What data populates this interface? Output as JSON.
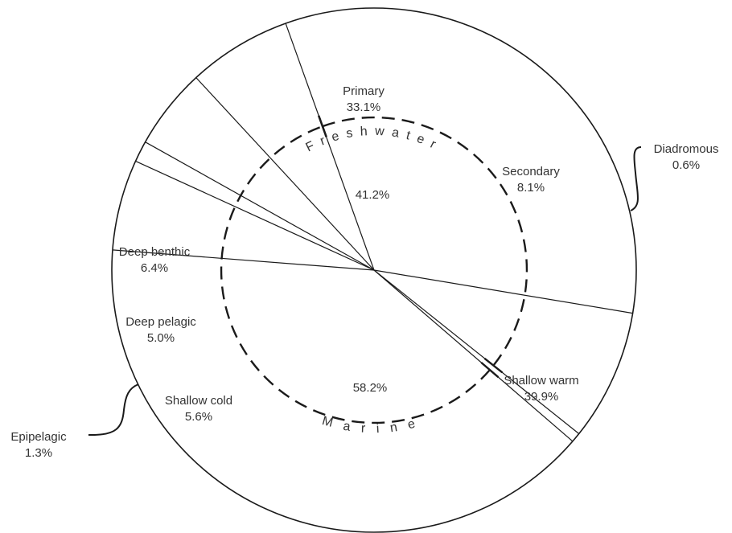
{
  "chart_data": {
    "type": "pie",
    "slices": [
      {
        "name": "Primary",
        "percent_label": "33.1%",
        "value": 33.1,
        "group": "freshwater"
      },
      {
        "name": "Secondary",
        "percent_label": "8.1%",
        "value": 8.1,
        "group": "freshwater"
      },
      {
        "name": "Diadromous",
        "percent_label": "0.6%",
        "value": 0.6,
        "group": "none"
      },
      {
        "name": "Shallow warm",
        "percent_label": "39.9%",
        "value": 39.9,
        "group": "marine"
      },
      {
        "name": "Shallow cold",
        "percent_label": "5.6%",
        "value": 5.6,
        "group": "marine"
      },
      {
        "name": "Epipelagic",
        "percent_label": "1.3%",
        "value": 1.3,
        "group": "marine"
      },
      {
        "name": "Deep pelagic",
        "percent_label": "5.0%",
        "value": 5.0,
        "group": "marine"
      },
      {
        "name": "Deep benthic",
        "percent_label": "6.4%",
        "value": 6.4,
        "group": "marine"
      }
    ],
    "groups": [
      {
        "id": "freshwater",
        "name": "Freshwater",
        "percent_label": "41.2%",
        "value": 41.2
      },
      {
        "id": "marine",
        "name": "Marine",
        "percent_label": "58.2%",
        "value": 58.2
      }
    ],
    "title": "",
    "legend": "none",
    "colors": {
      "line": "#1a1a1a",
      "text": "#333333",
      "background": "#ffffff"
    }
  }
}
